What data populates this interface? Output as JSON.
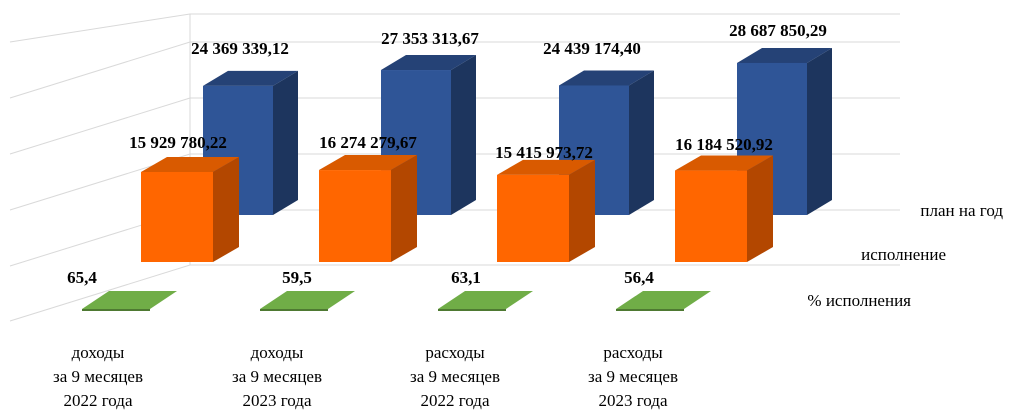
{
  "chart_data": {
    "type": "bar",
    "title": "",
    "categories": [
      [
        "доходы",
        "за 9 месяцев",
        "2022 года"
      ],
      [
        "доходы",
        "за 9 месяцев",
        "2023 года"
      ],
      [
        "расходы",
        "за 9 месяцев",
        "2022 года"
      ],
      [
        "расходы",
        "за 9 месяцев",
        "2023 года"
      ]
    ],
    "series": [
      {
        "name": "план на год",
        "color": "#2f5597",
        "values": [
          24369339.12,
          27353313.67,
          24439174.4,
          28687850.29
        ],
        "labels": [
          "24 369 339,12",
          "27 353 313,67",
          "24 439 174,40",
          "28 687 850,29"
        ]
      },
      {
        "name": "исполнение",
        "color": "#ff6600",
        "values": [
          15929780.22,
          16274279.67,
          15415973.72,
          16184520.92
        ],
        "labels": [
          "15 929 780,22",
          "16 274 279,67",
          "15 415 973,72",
          "16 184 520,92"
        ]
      },
      {
        "name": "% исполнения",
        "color": "#70ad47",
        "values": [
          65.4,
          59.5,
          63.1,
          56.4
        ],
        "labels": [
          "65,4",
          "59,5",
          "63,1",
          "56,4"
        ]
      }
    ],
    "gridlines": true,
    "legend": "series names at right end of each depth row"
  }
}
